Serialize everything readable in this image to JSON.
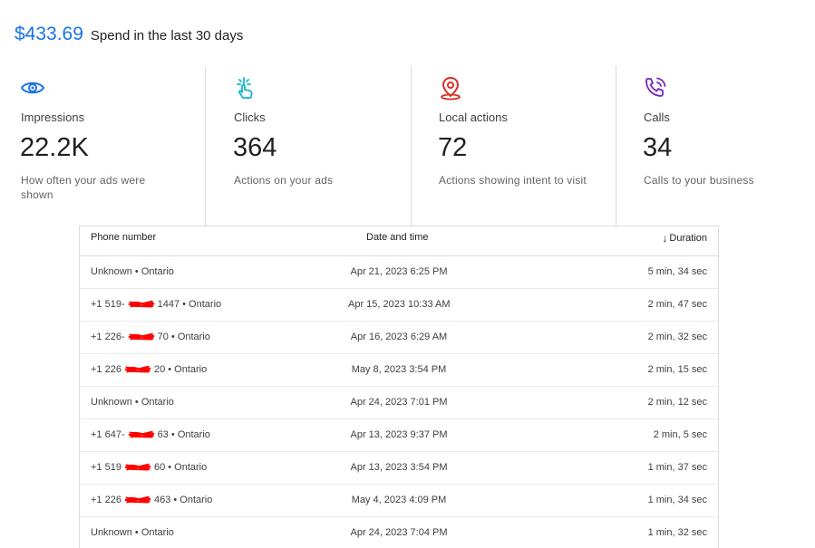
{
  "summary": {
    "amount": "$433.69",
    "label": "Spend in the last 30 days"
  },
  "metrics": [
    {
      "icon": "eye-icon",
      "label": "Impressions",
      "value": "22.2K",
      "desc": "How often your ads were shown",
      "icon_color": "#1a73e8"
    },
    {
      "icon": "tap-icon",
      "label": "Clicks",
      "value": "364",
      "desc": "Actions on your ads",
      "icon_color": "#12b5cb"
    },
    {
      "icon": "location-pin-icon",
      "label": "Local actions",
      "value": "72",
      "desc": "Actions showing intent to visit",
      "icon_color": "#d93025"
    },
    {
      "icon": "phone-call-icon",
      "label": "Calls",
      "value": "34",
      "desc": "Calls to your business",
      "icon_color": "#7627bb"
    }
  ],
  "table": {
    "headers": {
      "phone": "Phone number",
      "date": "Date and time",
      "duration": "Duration"
    },
    "rows": [
      {
        "phone_pre": "Unknown • Ontario",
        "phone_post": "",
        "redacted": false,
        "date": "Apr 21, 2023 6:25 PM",
        "duration": "5 min, 34 sec"
      },
      {
        "phone_pre": "+1 519-",
        "phone_post": "1447 • Ontario",
        "redacted": true,
        "date": "Apr 15, 2023 10:33 AM",
        "duration": "2 min, 47 sec"
      },
      {
        "phone_pre": "+1 226-",
        "phone_post": "70 • Ontario",
        "redacted": true,
        "date": "Apr 16, 2023 6:29 AM",
        "duration": "2 min, 32 sec"
      },
      {
        "phone_pre": "+1 226",
        "phone_post": "20 • Ontario",
        "redacted": true,
        "date": "May 8, 2023 3:54 PM",
        "duration": "2 min, 15 sec"
      },
      {
        "phone_pre": "Unknown • Ontario",
        "phone_post": "",
        "redacted": false,
        "date": "Apr 24, 2023 7:01 PM",
        "duration": "2 min, 12 sec"
      },
      {
        "phone_pre": "+1 647-",
        "phone_post": "63 • Ontario",
        "redacted": true,
        "date": "Apr 13, 2023 9:37 PM",
        "duration": "2 min, 5 sec"
      },
      {
        "phone_pre": "+1 519",
        "phone_post": "60 • Ontario",
        "redacted": true,
        "date": "Apr 13, 2023 3:54 PM",
        "duration": "1 min, 37 sec"
      },
      {
        "phone_pre": "+1 226",
        "phone_post": "463 • Ontario",
        "redacted": true,
        "date": "May 4, 2023 4:09 PM",
        "duration": "1 min, 34 sec"
      },
      {
        "phone_pre": "Unknown • Ontario",
        "phone_post": "",
        "redacted": false,
        "date": "Apr 24, 2023 7:04 PM",
        "duration": "1 min, 32 sec"
      }
    ]
  },
  "colors": {
    "accent": "#1a73e8",
    "redaction": "#ff0000"
  }
}
